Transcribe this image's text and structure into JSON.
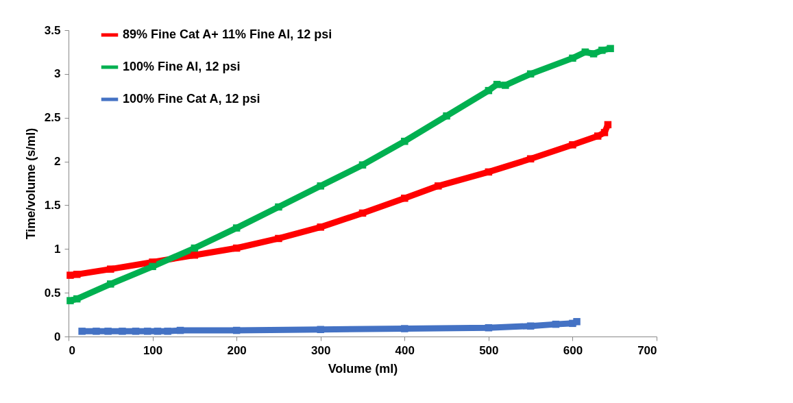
{
  "chart_data": {
    "type": "line",
    "xlabel": "Volume (ml)",
    "ylabel": "Time/volume (s/ml)",
    "xlim": [
      0,
      700
    ],
    "ylim": [
      0,
      3.5
    ],
    "xticks": [
      0,
      100,
      200,
      300,
      400,
      500,
      600,
      700
    ],
    "yticks": [
      0,
      0.5,
      1,
      1.5,
      2,
      2.5,
      3,
      3.5
    ],
    "grid": false,
    "legend": "top left",
    "marker": "square",
    "line_style": "solid",
    "series": [
      {
        "name": "89% Fine Cat A+ 11% Fine Al, 12 psi",
        "color": "#ff0000",
        "x": [
          2,
          10,
          50,
          100,
          150,
          200,
          250,
          300,
          350,
          400,
          440,
          500,
          550,
          600,
          630,
          638,
          642
        ],
        "values": [
          0.7,
          0.71,
          0.77,
          0.85,
          0.93,
          1.01,
          1.12,
          1.25,
          1.41,
          1.58,
          1.72,
          1.88,
          2.03,
          2.19,
          2.29,
          2.33,
          2.42
        ]
      },
      {
        "name": "100% Fine Al, 12 psi",
        "color": "#00b050",
        "x": [
          2,
          10,
          50,
          100,
          150,
          200,
          250,
          300,
          350,
          400,
          450,
          500,
          510,
          520,
          550,
          600,
          615,
          625,
          635,
          645
        ],
        "values": [
          0.41,
          0.43,
          0.6,
          0.8,
          1.01,
          1.24,
          1.48,
          1.72,
          1.96,
          2.23,
          2.52,
          2.81,
          2.88,
          2.87,
          3.0,
          3.18,
          3.25,
          3.23,
          3.27,
          3.29
        ]
      },
      {
        "name": "100% Fine Cat A, 12 psi",
        "color": "#4472c4",
        "x": [
          16,
          33,
          47,
          64,
          80,
          94,
          106,
          118,
          133,
          200,
          300,
          400,
          500,
          550,
          580,
          600,
          605
        ],
        "values": [
          0.06,
          0.06,
          0.06,
          0.06,
          0.06,
          0.06,
          0.06,
          0.06,
          0.07,
          0.07,
          0.08,
          0.09,
          0.1,
          0.12,
          0.14,
          0.15,
          0.17
        ]
      }
    ]
  }
}
